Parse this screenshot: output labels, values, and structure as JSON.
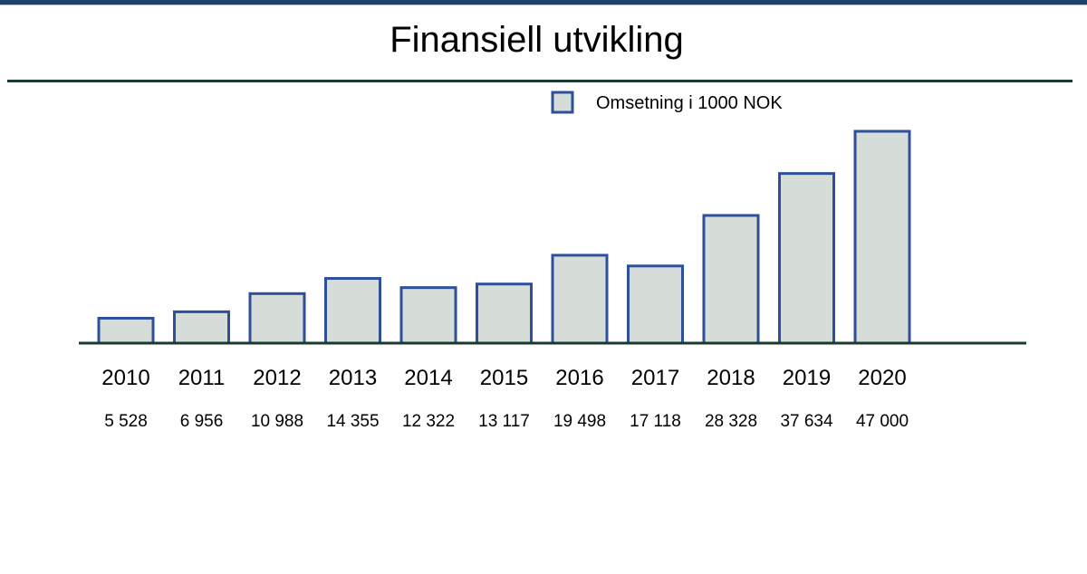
{
  "header": {
    "title": "Finansiell utvikling"
  },
  "chart_data": {
    "type": "bar",
    "title": "Finansiell utvikling",
    "categories": [
      "2010",
      "2011",
      "2012",
      "2013",
      "2014",
      "2015",
      "2016",
      "2017",
      "2018",
      "2019",
      "2020"
    ],
    "series": [
      {
        "name": "Omsetning i 1000 NOK",
        "values": [
          5528,
          6956,
          10988,
          14355,
          12322,
          13117,
          19498,
          17118,
          28328,
          37634,
          47000
        ]
      }
    ],
    "value_labels": [
      "5 528",
      "6 956",
      "10 988",
      "14 355",
      "12 322",
      "13 117",
      "19 498",
      "17 118",
      "28 328",
      "37 634",
      "47 000"
    ],
    "ylim": [
      0,
      47000
    ],
    "grid": false,
    "legend_position": "top-right",
    "colors": {
      "bar_fill": "#d6dcd8",
      "bar_stroke": "#2e4f99",
      "axis": "#1b3a2e"
    }
  }
}
